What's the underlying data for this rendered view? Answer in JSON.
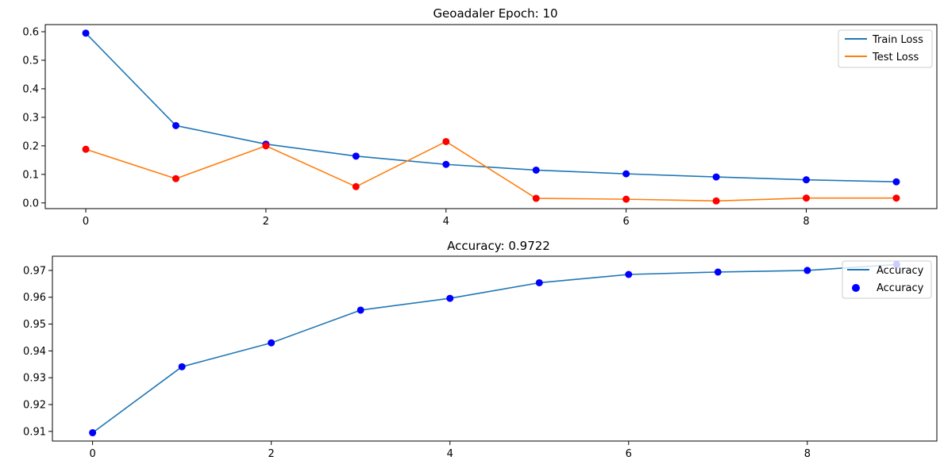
{
  "colors": {
    "train_line": "#1f77b4",
    "test_line": "#ff7f0e",
    "accuracy_line": "#1f77b4",
    "train_points": "#0000ff",
    "test_points": "#ff0000",
    "accuracy_points": "#0000ff",
    "axes": "#000000",
    "background": "#ffffff"
  },
  "chart_data": [
    {
      "type": "line",
      "title": "Geoadaler Epoch: 10",
      "xlabel": "",
      "ylabel": "",
      "x": [
        0,
        1,
        2,
        3,
        4,
        5,
        6,
        7,
        8,
        9
      ],
      "xlim": [
        -0.45,
        9.45
      ],
      "ylim": [
        -0.02,
        0.625
      ],
      "x_ticks": [
        0,
        2,
        4,
        6,
        8
      ],
      "x_tick_labels": [
        "0",
        "2",
        "4",
        "6",
        "8"
      ],
      "y_ticks": [
        0.0,
        0.1,
        0.2,
        0.3,
        0.4,
        0.5,
        0.6
      ],
      "y_tick_labels": [
        "0.0",
        "0.1",
        "0.2",
        "0.3",
        "0.4",
        "0.5",
        "0.6"
      ],
      "grid": false,
      "legend_position": "top-right",
      "series": [
        {
          "name": "Train Loss",
          "kind": "line",
          "values": [
            0.595,
            0.271,
            0.206,
            0.164,
            0.135,
            0.115,
            0.102,
            0.091,
            0.081,
            0.074
          ]
        },
        {
          "name": "Test Loss",
          "kind": "line",
          "values": [
            0.188,
            0.085,
            0.2,
            0.057,
            0.215,
            0.016,
            0.013,
            0.007,
            0.017,
            0.017
          ]
        }
      ],
      "legend": [
        {
          "label": "Train Loss",
          "marker": "line",
          "color": "#1f77b4"
        },
        {
          "label": "Test Loss",
          "marker": "line",
          "color": "#ff7f0e"
        }
      ]
    },
    {
      "type": "line",
      "title": "Accuracy: 0.9722",
      "xlabel": "",
      "ylabel": "",
      "x": [
        0,
        1,
        2,
        3,
        4,
        5,
        6,
        7,
        8,
        9
      ],
      "xlim": [
        -0.45,
        9.45
      ],
      "ylim": [
        0.9064,
        0.9753
      ],
      "x_ticks": [
        0,
        2,
        4,
        6,
        8
      ],
      "x_tick_labels": [
        "0",
        "2",
        "4",
        "6",
        "8"
      ],
      "y_ticks": [
        0.91,
        0.92,
        0.93,
        0.94,
        0.95,
        0.96,
        0.97
      ],
      "y_tick_labels": [
        "0.91",
        "0.92",
        "0.93",
        "0.94",
        "0.95",
        "0.96",
        "0.97"
      ],
      "grid": false,
      "legend_position": "top-right",
      "series": [
        {
          "name": "Accuracy",
          "kind": "line+scatter",
          "values": [
            0.9095,
            0.9341,
            0.943,
            0.9552,
            0.9596,
            0.9654,
            0.9685,
            0.9694,
            0.97,
            0.9722
          ]
        }
      ],
      "legend": [
        {
          "label": "Accuracy",
          "marker": "line",
          "color": "#1f77b4"
        },
        {
          "label": "Accuracy",
          "marker": "dot",
          "color": "#0000ff"
        }
      ]
    }
  ]
}
